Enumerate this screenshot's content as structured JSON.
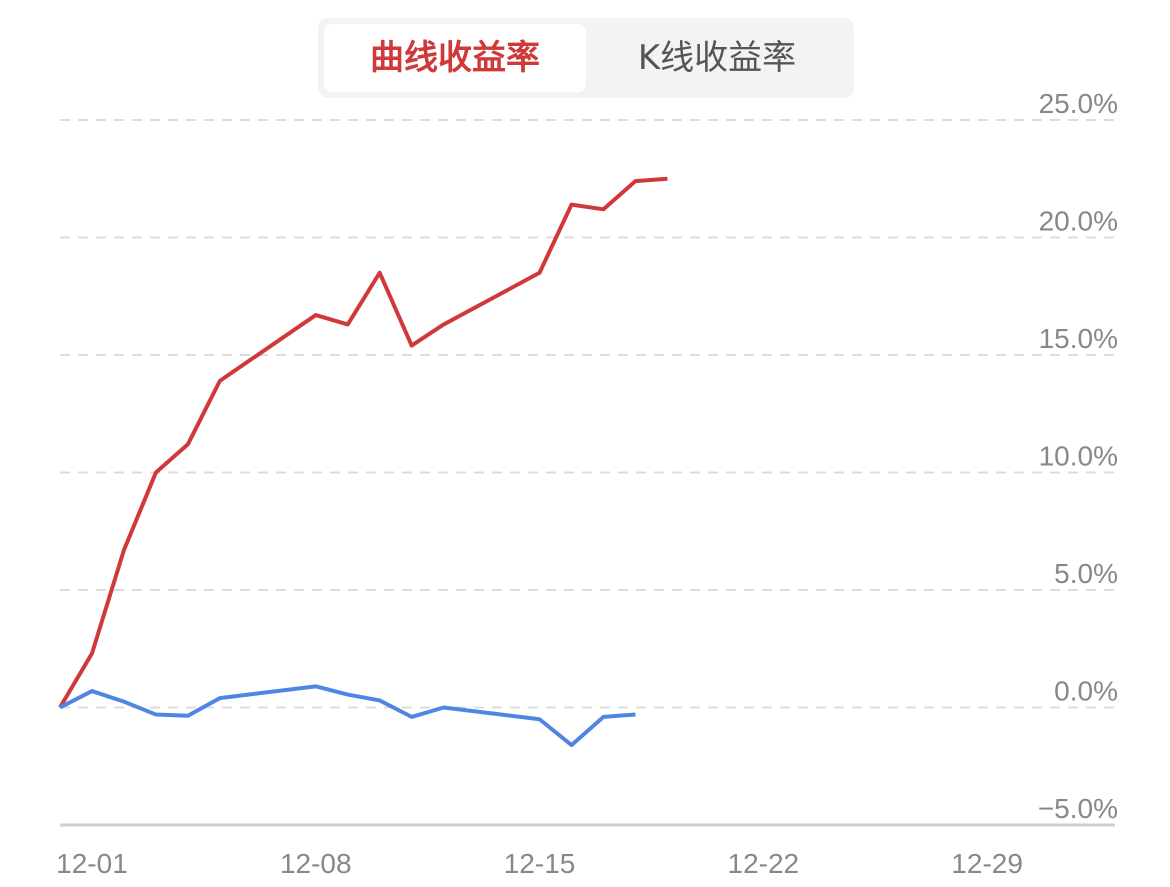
{
  "tabs": [
    "曲线收益率",
    "K线收益率"
  ],
  "chart_data": {
    "type": "line",
    "x": [
      0,
      1,
      2,
      3,
      4,
      5,
      8,
      9,
      10,
      11,
      12,
      15,
      16,
      17,
      18,
      19
    ],
    "series": [
      {
        "color": "#d0393a",
        "values": [
          0,
          2.3,
          6.7,
          10.0,
          11.2,
          13.9,
          16.7,
          16.3,
          18.5,
          15.4,
          16.3,
          18.5,
          21.4,
          21.2,
          22.4,
          22.5
        ]
      },
      {
        "color": "#4f86e3",
        "values": [
          0,
          0.7,
          0.25,
          -0.3,
          -0.35,
          0.4,
          0.9,
          0.55,
          0.3,
          -0.4,
          0,
          -0.5,
          -1.6,
          -0.4,
          -0.3,
          null
        ]
      }
    ],
    "xlim": [
      0,
      33
    ],
    "xticks": [
      {
        "value": 1,
        "label": "12-01"
      },
      {
        "value": 8,
        "label": "12-08"
      },
      {
        "value": 15,
        "label": "12-15"
      },
      {
        "value": 22,
        "label": "12-22"
      },
      {
        "value": 29,
        "label": "12-29"
      }
    ],
    "ylim": [
      -5,
      25
    ],
    "yticks": [
      {
        "value": -5,
        "label": "−5.0%"
      },
      {
        "value": 0,
        "label": "0.0%"
      },
      {
        "value": 5,
        "label": "5.0%"
      },
      {
        "value": 10,
        "label": "10.0%"
      },
      {
        "value": 15,
        "label": "15.0%"
      },
      {
        "value": 20,
        "label": "20.0%"
      },
      {
        "value": 25,
        "label": "25.0%"
      }
    ],
    "grid": true
  }
}
